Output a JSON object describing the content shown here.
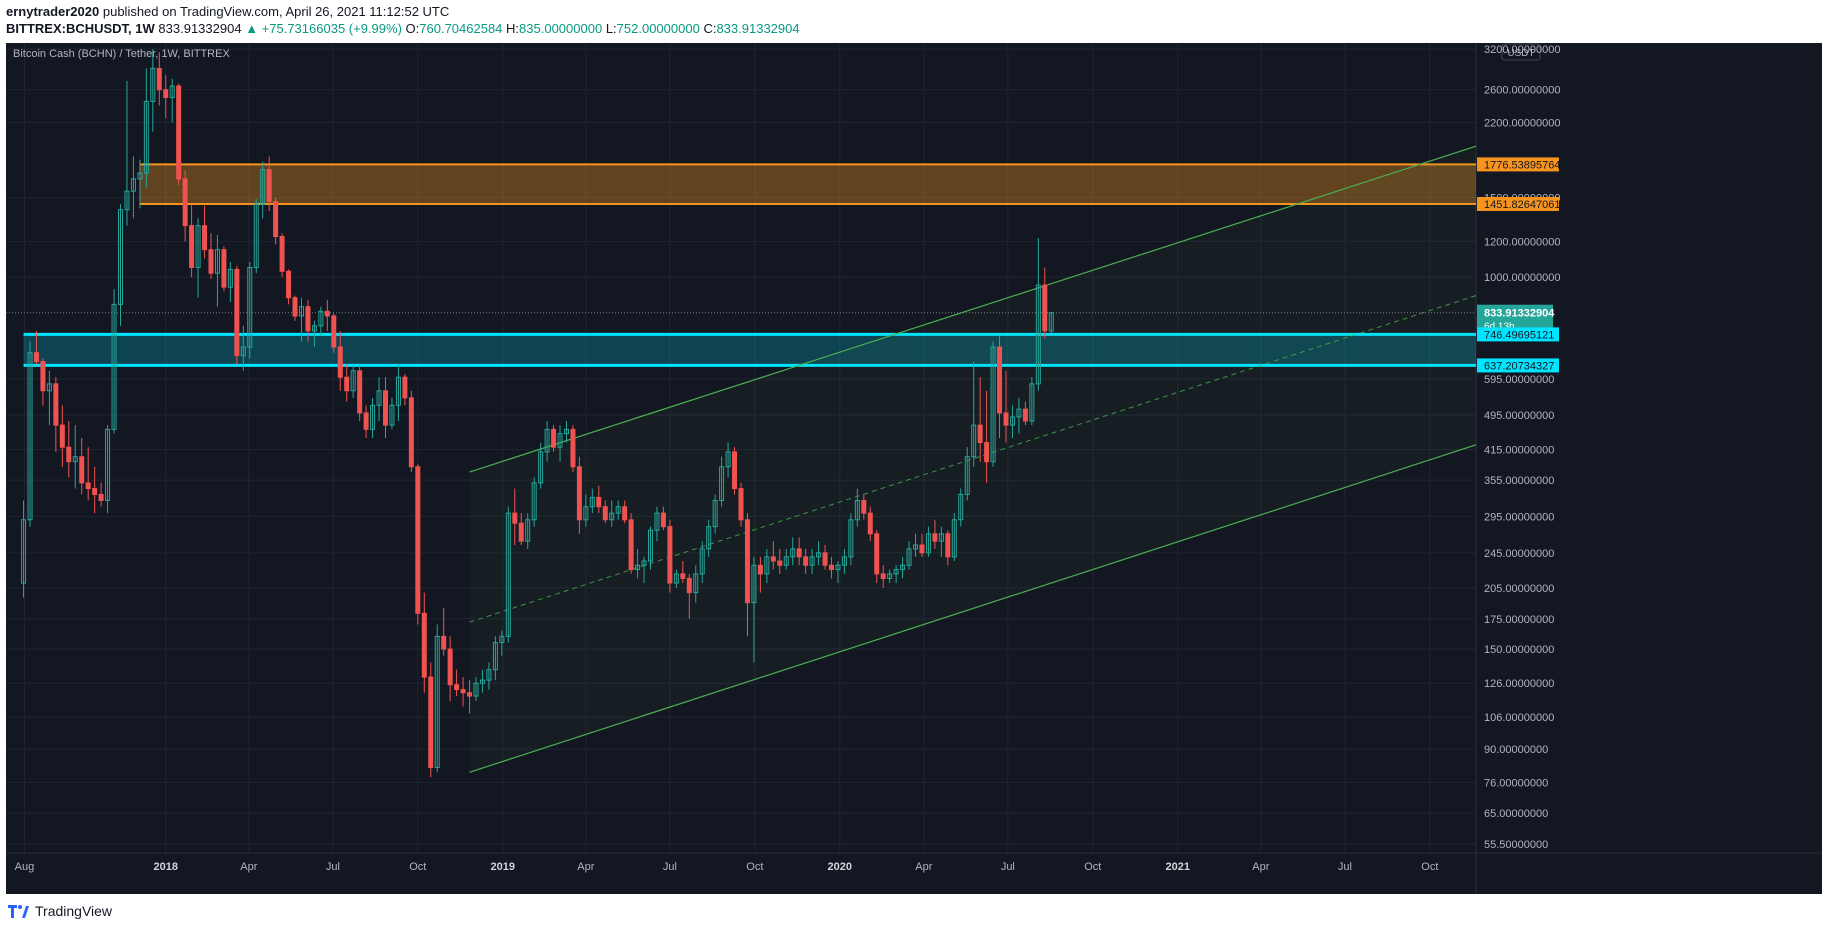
{
  "header": {
    "publisher": "ernytrader2020",
    "published_text": "published on TradingView.com, April 26, 2021 11:12:52 UTC",
    "symbol": "BITTREX:BCHUSDT, 1W",
    "last": "833.91332904",
    "change": "▲ +75.73166035 (+9.99%)",
    "o_label": "O:",
    "o_value": "760.70462584",
    "h_label": "H:",
    "h_value": "835.00000000",
    "l_label": "L:",
    "l_value": "752.00000000",
    "c_label": "C:",
    "c_value": "833.91332904"
  },
  "footer": {
    "brand": "TradingView"
  },
  "chart_data": {
    "type": "candlestick",
    "title": "Bitcoin Cash (BCHN) / Tether, 1W, BITTREX",
    "currency": "USDT",
    "y_scale": "log",
    "ylim": [
      53,
      3300
    ],
    "xlim": [
      "2017-07-12",
      "2021-11-20"
    ],
    "y_ticks": [
      "3200.00000000",
      "2600.00000000",
      "2200.00000000",
      "1500.00000000",
      "1200.00000000",
      "1000.00000000",
      "595.00000000",
      "495.00000000",
      "415.00000000",
      "355.00000000",
      "295.00000000",
      "245.00000000",
      "205.00000000",
      "175.00000000",
      "150.00000000",
      "126.00000000",
      "106.00000000",
      "90.00000000",
      "76.00000000",
      "65.00000000",
      "55.50000000"
    ],
    "x_ticks": [
      {
        "date": "2017-08-01",
        "label": "Aug",
        "bold": false
      },
      {
        "date": "2018-01-01",
        "label": "2018",
        "bold": true
      },
      {
        "date": "2018-04-01",
        "label": "Apr",
        "bold": false
      },
      {
        "date": "2018-07-01",
        "label": "Jul",
        "bold": false
      },
      {
        "date": "2018-10-01",
        "label": "Oct",
        "bold": false
      },
      {
        "date": "2019-01-01",
        "label": "2019",
        "bold": true
      },
      {
        "date": "2019-04-01",
        "label": "Apr",
        "bold": false
      },
      {
        "date": "2019-07-01",
        "label": "Jul",
        "bold": false
      },
      {
        "date": "2019-10-01",
        "label": "Oct",
        "bold": false
      },
      {
        "date": "2020-01-01",
        "label": "2020",
        "bold": true
      },
      {
        "date": "2020-04-01",
        "label": "Apr",
        "bold": false
      },
      {
        "date": "2020-07-01",
        "label": "Jul",
        "bold": false
      },
      {
        "date": "2020-10-01",
        "label": "Oct",
        "bold": false
      },
      {
        "date": "2021-01-01",
        "label": "2021",
        "bold": true
      },
      {
        "date": "2021-04-01",
        "label": "Apr",
        "bold": false
      },
      {
        "date": "2021-07-01",
        "label": "Jul",
        "bold": false
      },
      {
        "date": "2021-10-01",
        "label": "Oct",
        "bold": false
      }
    ],
    "candles_start": "2017-07-31",
    "candle_interval_days": 7,
    "candles": [
      [
        210,
        320,
        195,
        290
      ],
      [
        290,
        720,
        280,
        680
      ],
      [
        680,
        760,
        640,
        650
      ],
      [
        650,
        660,
        520,
        560
      ],
      [
        560,
        620,
        470,
        580
      ],
      [
        580,
        600,
        410,
        470
      ],
      [
        470,
        520,
        380,
        420
      ],
      [
        420,
        480,
        360,
        390
      ],
      [
        390,
        470,
        340,
        400
      ],
      [
        400,
        440,
        330,
        350
      ],
      [
        350,
        420,
        320,
        340
      ],
      [
        340,
        380,
        300,
        330
      ],
      [
        330,
        350,
        310,
        320
      ],
      [
        320,
        470,
        300,
        460
      ],
      [
        460,
        940,
        450,
        870
      ],
      [
        870,
        1450,
        780,
        1410
      ],
      [
        1410,
        2720,
        1300,
        1550
      ],
      [
        1550,
        1850,
        1350,
        1650
      ],
      [
        1650,
        1820,
        1420,
        1700
      ],
      [
        1700,
        2900,
        1580,
        2450
      ],
      [
        2450,
        3200,
        2100,
        2900
      ],
      [
        2900,
        3150,
        2400,
        2600
      ],
      [
        2600,
        2800,
        2250,
        2500
      ],
      [
        2500,
        2750,
        2200,
        2650
      ],
      [
        2650,
        2680,
        1600,
        1650
      ],
      [
        1650,
        1720,
        1200,
        1300
      ],
      [
        1300,
        1450,
        1000,
        1050
      ],
      [
        1050,
        1350,
        900,
        1300
      ],
      [
        1300,
        1440,
        1100,
        1150
      ],
      [
        1150,
        1250,
        990,
        1020
      ],
      [
        1020,
        1240,
        860,
        1150
      ],
      [
        1150,
        1170,
        930,
        950
      ],
      [
        950,
        1080,
        880,
        1040
      ],
      [
        1040,
        1060,
        640,
        670
      ],
      [
        670,
        780,
        620,
        700
      ],
      [
        700,
        1080,
        660,
        1050
      ],
      [
        1050,
        1490,
        1020,
        1450
      ],
      [
        1450,
        1800,
        1350,
        1730
      ],
      [
        1730,
        1850,
        1400,
        1470
      ],
      [
        1470,
        1500,
        1180,
        1230
      ],
      [
        1230,
        1250,
        1000,
        1030
      ],
      [
        1030,
        1040,
        870,
        900
      ],
      [
        900,
        910,
        800,
        820
      ],
      [
        820,
        900,
        720,
        860
      ],
      [
        860,
        890,
        720,
        760
      ],
      [
        760,
        800,
        700,
        780
      ],
      [
        780,
        860,
        740,
        840
      ],
      [
        840,
        890,
        760,
        820
      ],
      [
        820,
        830,
        680,
        700
      ],
      [
        700,
        760,
        560,
        600
      ],
      [
        600,
        640,
        530,
        560
      ],
      [
        560,
        640,
        540,
        620
      ],
      [
        620,
        640,
        480,
        500
      ],
      [
        500,
        520,
        440,
        460
      ],
      [
        460,
        540,
        440,
        520
      ],
      [
        520,
        600,
        480,
        560
      ],
      [
        560,
        600,
        440,
        470
      ],
      [
        470,
        540,
        460,
        520
      ],
      [
        520,
        640,
        480,
        600
      ],
      [
        600,
        610,
        520,
        540
      ],
      [
        540,
        560,
        370,
        380
      ],
      [
        380,
        385,
        170,
        180
      ],
      [
        180,
        200,
        120,
        130
      ],
      [
        130,
        140,
        78,
        82
      ],
      [
        82,
        170,
        80,
        160
      ],
      [
        160,
        185,
        145,
        150
      ],
      [
        150,
        160,
        115,
        125
      ],
      [
        125,
        135,
        118,
        122
      ],
      [
        122,
        130,
        112,
        120
      ],
      [
        120,
        128,
        108,
        118
      ],
      [
        118,
        130,
        115,
        126
      ],
      [
        126,
        135,
        120,
        128
      ],
      [
        128,
        140,
        122,
        135
      ],
      [
        135,
        160,
        128,
        155
      ],
      [
        155,
        165,
        145,
        160
      ],
      [
        160,
        310,
        155,
        300
      ],
      [
        300,
        340,
        255,
        285
      ],
      [
        285,
        300,
        255,
        260
      ],
      [
        260,
        300,
        250,
        290
      ],
      [
        290,
        360,
        280,
        350
      ],
      [
        350,
        430,
        340,
        410
      ],
      [
        410,
        480,
        390,
        460
      ],
      [
        460,
        470,
        410,
        420
      ],
      [
        420,
        470,
        390,
        450
      ],
      [
        450,
        480,
        430,
        460
      ],
      [
        460,
        470,
        370,
        380
      ],
      [
        380,
        400,
        270,
        290
      ],
      [
        290,
        330,
        280,
        310
      ],
      [
        310,
        340,
        300,
        325
      ],
      [
        325,
        345,
        300,
        310
      ],
      [
        310,
        320,
        285,
        290
      ],
      [
        290,
        320,
        280,
        300
      ],
      [
        300,
        320,
        290,
        310
      ],
      [
        310,
        320,
        285,
        290
      ],
      [
        290,
        300,
        220,
        225
      ],
      [
        225,
        250,
        215,
        230
      ],
      [
        230,
        240,
        210,
        235
      ],
      [
        235,
        280,
        225,
        275
      ],
      [
        275,
        310,
        260,
        300
      ],
      [
        300,
        310,
        275,
        280
      ],
      [
        280,
        290,
        200,
        210
      ],
      [
        210,
        225,
        205,
        220
      ],
      [
        220,
        235,
        210,
        215
      ],
      [
        215,
        220,
        175,
        200
      ],
      [
        200,
        230,
        190,
        220
      ],
      [
        220,
        260,
        210,
        250
      ],
      [
        250,
        290,
        240,
        280
      ],
      [
        280,
        330,
        270,
        320
      ],
      [
        320,
        400,
        310,
        380
      ],
      [
        380,
        430,
        360,
        410
      ],
      [
        410,
        420,
        330,
        340
      ],
      [
        340,
        350,
        280,
        290
      ],
      [
        290,
        300,
        160,
        190
      ],
      [
        190,
        240,
        140,
        230
      ],
      [
        230,
        240,
        200,
        220
      ],
      [
        220,
        250,
        210,
        240
      ],
      [
        240,
        260,
        225,
        235
      ],
      [
        235,
        250,
        220,
        230
      ],
      [
        230,
        250,
        225,
        240
      ],
      [
        240,
        265,
        230,
        250
      ],
      [
        250,
        265,
        230,
        240
      ],
      [
        240,
        250,
        220,
        230
      ],
      [
        230,
        250,
        220,
        240
      ],
      [
        240,
        260,
        230,
        245
      ],
      [
        245,
        255,
        225,
        230
      ],
      [
        230,
        240,
        215,
        225
      ],
      [
        225,
        235,
        210,
        230
      ],
      [
        230,
        250,
        220,
        240
      ],
      [
        240,
        300,
        230,
        290
      ],
      [
        290,
        340,
        280,
        320
      ],
      [
        320,
        330,
        290,
        300
      ],
      [
        300,
        310,
        260,
        270
      ],
      [
        270,
        275,
        210,
        220
      ],
      [
        220,
        230,
        205,
        215
      ],
      [
        215,
        225,
        210,
        220
      ],
      [
        220,
        230,
        210,
        225
      ],
      [
        225,
        240,
        215,
        230
      ],
      [
        230,
        260,
        225,
        250
      ],
      [
        250,
        270,
        240,
        255
      ],
      [
        255,
        270,
        240,
        245
      ],
      [
        245,
        280,
        240,
        270
      ],
      [
        270,
        290,
        250,
        260
      ],
      [
        260,
        280,
        240,
        270
      ],
      [
        270,
        275,
        230,
        240
      ],
      [
        240,
        300,
        235,
        290
      ],
      [
        290,
        340,
        280,
        330
      ],
      [
        330,
        420,
        320,
        400
      ],
      [
        400,
        650,
        380,
        470
      ],
      [
        470,
        600,
        390,
        430
      ],
      [
        430,
        560,
        350,
        390
      ],
      [
        390,
        720,
        380,
        700
      ],
      [
        700,
        740,
        440,
        500
      ],
      [
        500,
        620,
        430,
        470
      ],
      [
        470,
        520,
        440,
        490
      ],
      [
        490,
        540,
        450,
        510
      ],
      [
        510,
        530,
        470,
        480
      ],
      [
        480,
        600,
        470,
        580
      ],
      [
        580,
        1220,
        560,
        960
      ],
      [
        960,
        1050,
        730,
        760
      ],
      [
        760,
        835,
        752,
        834
      ]
    ],
    "annotations": {
      "resistance_zone": {
        "low": 1451.82647061,
        "high": 1776.53895764,
        "start": "2017-12-04",
        "label_low": "1451.82647061",
        "label_high": "1776.53895764",
        "color": "#f7941d"
      },
      "support_zone": {
        "low": 637.20734327,
        "high": 746.49695121,
        "start": "2017-07-31",
        "label_low": "637.20734327",
        "label_high": "746.49695121",
        "color": "#00e5ff"
      },
      "channel": {
        "upper": {
          "p1": [
            "2018-11-26",
            370
          ],
          "p2": [
            "2021-11-20",
            1950
          ]
        },
        "lower": {
          "p1": [
            "2018-11-26",
            80
          ],
          "p2": [
            "2021-11-20",
            425
          ]
        },
        "mid": {
          "p1": [
            "2018-11-26",
            172
          ],
          "p2": [
            "2021-11-20",
            910
          ]
        },
        "color": "#4caf50"
      },
      "last_price": {
        "value": 833.91332904,
        "label": "833.91332904",
        "countdown": "6d 13h",
        "color": "#26a69a"
      }
    },
    "colors": {
      "up": "#26a69a",
      "down": "#ef5350",
      "background": "#131722",
      "grid": "#1f2531",
      "text": "#b2b5be"
    }
  }
}
